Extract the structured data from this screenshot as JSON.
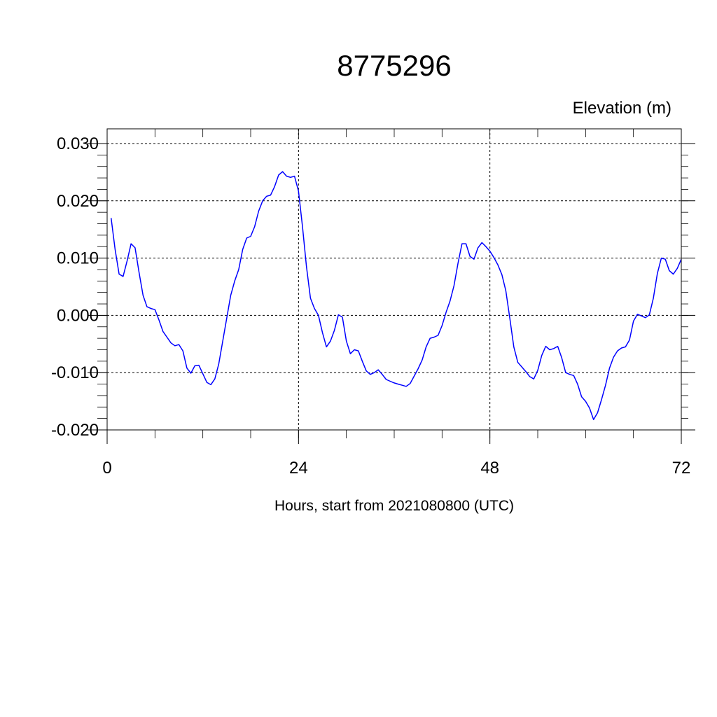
{
  "chart_data": {
    "type": "line",
    "title": "8775296",
    "ylabel": "Elevation (m)",
    "xlabel": "Hours, start from 2021080800 (UTC)",
    "xlim": [
      0,
      72
    ],
    "ylim": [
      -0.02,
      0.03
    ],
    "xticks": [
      0,
      24,
      48,
      72
    ],
    "xtick_labels": [
      "0",
      "24",
      "48",
      "72"
    ],
    "yticks": [
      -0.02,
      -0.01,
      0.0,
      0.01,
      0.02,
      0.03
    ],
    "ytick_labels": [
      "-0.020",
      "-0.010",
      "0.000",
      "0.010",
      "0.020",
      "0.030"
    ],
    "grid": "dashed at major ticks",
    "colors": {
      "line": "#0000ff",
      "axes": "#000000",
      "grid": "#000000"
    },
    "series": [
      {
        "x": [
          0.5,
          1.0,
          1.5,
          2.0,
          2.5,
          3.0,
          3.5,
          4.0,
          4.5,
          5.0,
          5.5,
          6.0,
          6.5,
          7.0,
          7.5,
          8.0,
          8.5,
          9.0,
          9.5,
          10.0,
          10.5,
          11.0,
          11.5,
          12.0,
          12.5,
          13.0,
          13.5,
          14.0,
          14.5,
          15.0,
          15.5,
          16.0,
          16.5,
          17.0,
          17.5,
          18.0,
          18.5,
          19.0,
          19.5,
          20.0,
          20.5,
          21.0,
          21.5,
          22.0,
          22.5,
          23.0,
          23.5,
          24.0,
          24.5,
          25.0,
          25.5,
          26.0,
          26.5,
          27.0,
          27.5,
          28.0,
          28.5,
          29.0,
          29.5,
          30.0,
          30.5,
          31.0,
          31.5,
          32.0,
          32.5,
          33.0,
          33.5,
          34.0,
          34.5,
          35.0,
          35.5,
          36.0,
          36.5,
          37.0,
          37.5,
          38.0,
          38.5,
          39.0,
          39.5,
          40.0,
          40.5,
          41.0,
          41.5,
          42.0,
          42.5,
          43.0,
          43.5,
          44.0,
          44.5,
          45.0,
          45.5,
          46.0,
          46.5,
          47.0,
          47.5,
          48.0,
          48.5,
          49.0,
          49.5,
          50.0,
          50.5,
          51.0,
          51.5,
          52.0,
          52.5,
          53.0,
          53.5,
          54.0,
          54.5,
          55.0,
          55.5,
          56.0,
          56.5,
          57.0,
          57.5,
          58.0,
          58.5,
          59.0,
          59.5,
          60.0,
          60.5,
          61.0,
          61.5,
          62.0,
          62.5,
          63.0,
          63.5,
          64.0,
          64.5,
          65.0,
          65.5,
          66.0,
          66.5,
          67.0,
          67.5,
          68.0,
          68.5,
          69.0,
          69.5,
          70.0,
          70.5,
          71.0,
          71.5,
          72.0
        ],
        "values": [
          0.017,
          0.0115,
          0.0072,
          0.0068,
          0.0095,
          0.0125,
          0.0118,
          0.0075,
          0.0035,
          0.0015,
          0.0012,
          0.001,
          -0.0008,
          -0.0028,
          -0.0038,
          -0.0048,
          -0.0053,
          -0.0051,
          -0.0062,
          -0.0092,
          -0.0101,
          -0.0088,
          -0.0087,
          -0.0102,
          -0.0117,
          -0.0121,
          -0.0111,
          -0.0085,
          -0.0045,
          -0.0005,
          0.0035,
          0.006,
          0.008,
          0.0115,
          0.0135,
          0.0138,
          0.0155,
          0.0182,
          0.02,
          0.0208,
          0.021,
          0.0225,
          0.0245,
          0.0251,
          0.0243,
          0.0241,
          0.0243,
          0.0217,
          0.0155,
          0.0085,
          0.003,
          0.0012,
          0.0,
          -0.003,
          -0.0055,
          -0.0045,
          -0.0026,
          0.0001,
          -0.0003,
          -0.0045,
          -0.0067,
          -0.006,
          -0.0062,
          -0.008,
          -0.0097,
          -0.0103,
          -0.01,
          -0.0095,
          -0.0103,
          -0.0112,
          -0.0115,
          -0.0118,
          -0.012,
          -0.0122,
          -0.0124,
          -0.0119,
          -0.0106,
          -0.0093,
          -0.0078,
          -0.0055,
          -0.004,
          -0.0038,
          -0.0035,
          -0.0018,
          0.0005,
          0.0025,
          0.0052,
          0.0091,
          0.0125,
          0.0125,
          0.0103,
          0.0098,
          0.0118,
          0.0127,
          0.012,
          0.0112,
          0.0101,
          0.0088,
          0.0071,
          0.0043,
          -0.0005,
          -0.0055,
          -0.0082,
          -0.009,
          -0.0098,
          -0.0107,
          -0.0111,
          -0.0096,
          -0.007,
          -0.0054,
          -0.006,
          -0.0058,
          -0.0054,
          -0.0074,
          -0.01,
          -0.0103,
          -0.0105,
          -0.012,
          -0.0142,
          -0.015,
          -0.0162,
          -0.0182,
          -0.017,
          -0.0147,
          -0.0122,
          -0.0092,
          -0.0073,
          -0.0062,
          -0.0057,
          -0.0055,
          -0.0043,
          -0.001,
          0.0002,
          -0.0001,
          -0.0004,
          0.0001,
          0.003,
          0.0073,
          0.01,
          0.0098,
          0.0078,
          0.0072,
          0.0082,
          0.0098
        ]
      }
    ]
  }
}
